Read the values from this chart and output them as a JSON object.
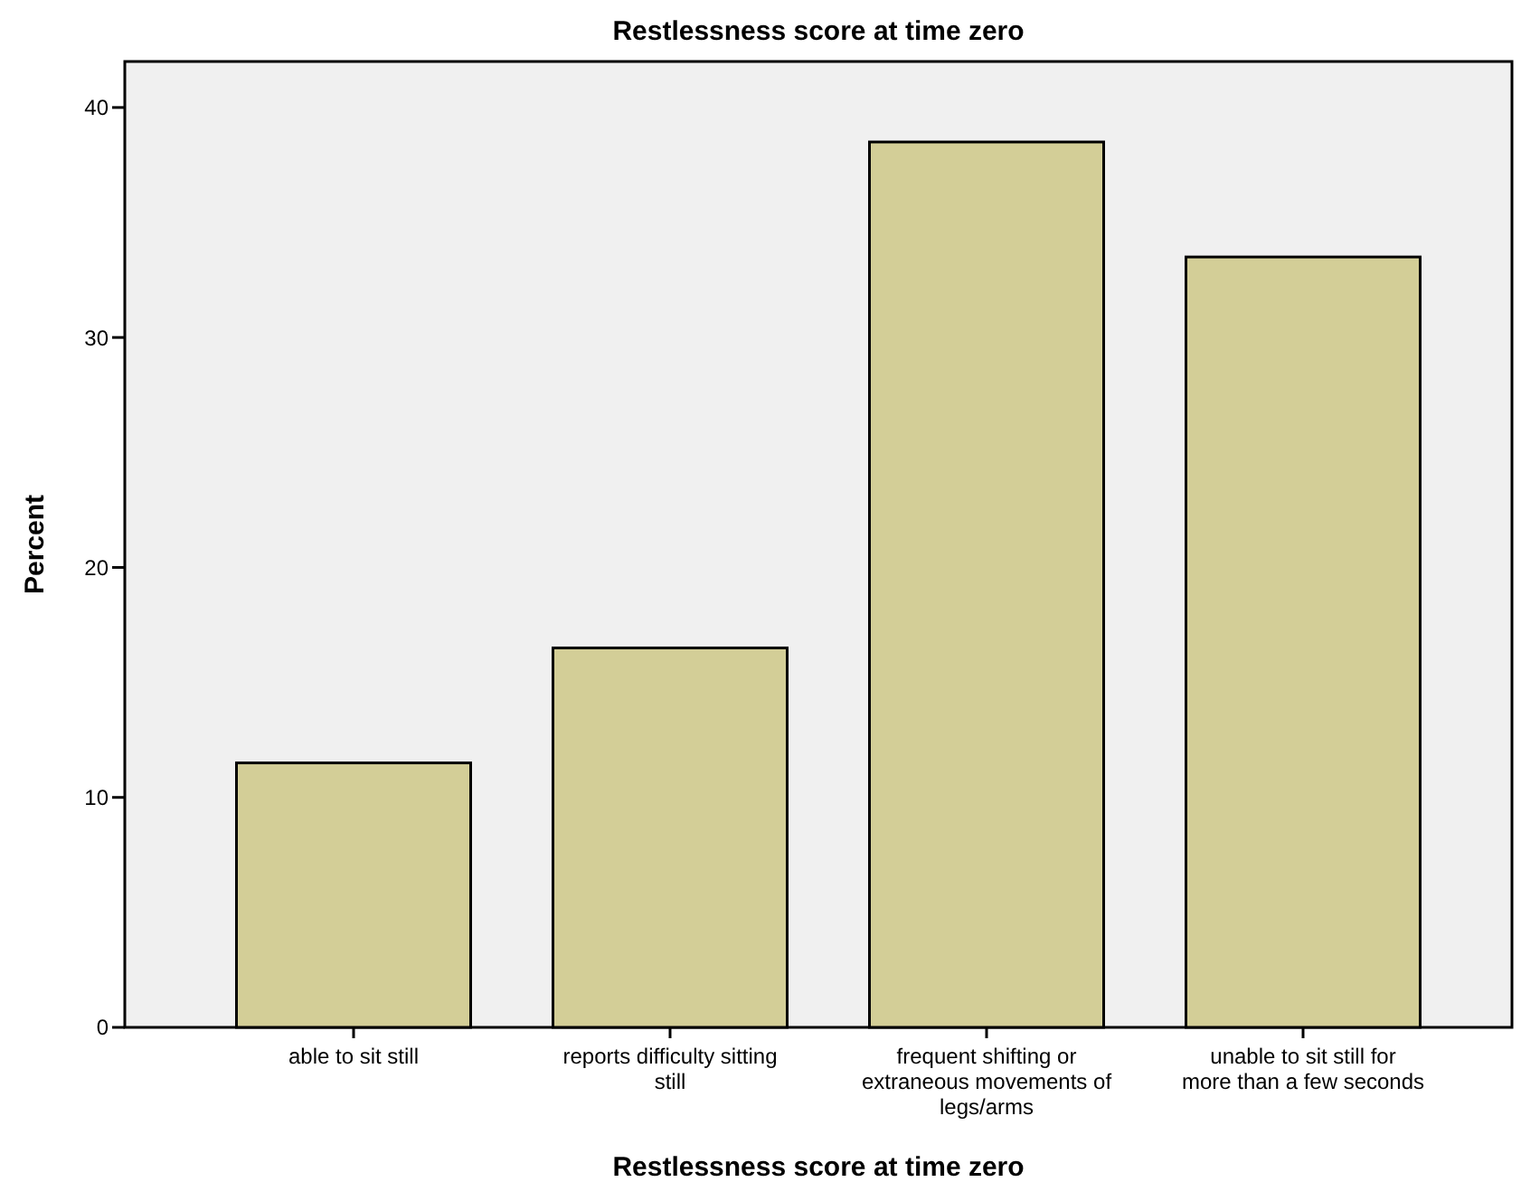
{
  "chart_data": {
    "type": "bar",
    "title": "Restlessness score at time zero",
    "xlabel": "Restlessness score at time zero",
    "ylabel": "Percent",
    "categories": [
      "able to sit still",
      "reports difficulty sitting still",
      "frequent shifting or extraneous movements of legs/arms",
      "unable to sit still for more than a few seconds"
    ],
    "values": [
      11.5,
      16.5,
      38.5,
      33.5
    ],
    "color": "#d3ce97",
    "ylim": [
      0,
      42
    ],
    "yticks": [
      0,
      10,
      20,
      30,
      40
    ],
    "grid": false
  }
}
